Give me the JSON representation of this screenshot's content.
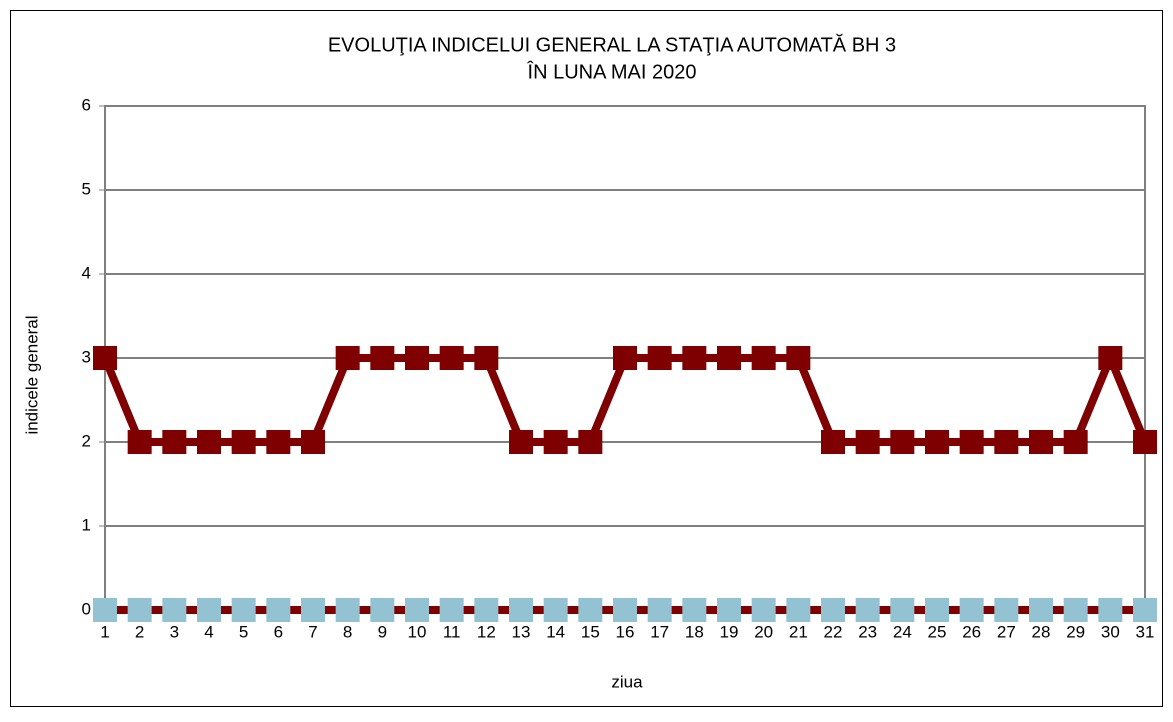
{
  "chart_data": {
    "type": "line",
    "title": [
      "EVOLUŢIA INDICELUI GENERAL LA STAŢIA AUTOMATĂ BH 3",
      "ÎN LUNA MAI 2020"
    ],
    "x_label": "ziua",
    "y_label": "indicele general",
    "categories": [
      "1",
      "2",
      "3",
      "4",
      "5",
      "6",
      "7",
      "8",
      "9",
      "10",
      "11",
      "12",
      "13",
      "14",
      "15",
      "16",
      "17",
      "18",
      "19",
      "20",
      "21",
      "22",
      "23",
      "24",
      "25",
      "26",
      "27",
      "28",
      "29",
      "30",
      "31"
    ],
    "series": [
      {
        "color": "#7f0000",
        "marker_color": "#7f0000",
        "values": [
          3,
          2,
          2,
          2,
          2,
          2,
          2,
          3,
          3,
          3,
          3,
          3,
          2,
          2,
          2,
          3,
          3,
          3,
          3,
          3,
          3,
          2,
          2,
          2,
          2,
          2,
          2,
          2,
          2,
          3,
          2
        ]
      },
      {
        "color": "#7f0000",
        "marker_color": "#93c3d2",
        "values": [
          0,
          0,
          0,
          0,
          0,
          0,
          0,
          0,
          0,
          0,
          0,
          0,
          0,
          0,
          0,
          0,
          0,
          0,
          0,
          0,
          0,
          0,
          0,
          0,
          0,
          0,
          0,
          0,
          0,
          0,
          0
        ]
      }
    ],
    "ylim": [
      0,
      6
    ],
    "yticks": [
      0,
      1,
      2,
      3,
      4,
      5,
      6
    ],
    "grid": true
  }
}
